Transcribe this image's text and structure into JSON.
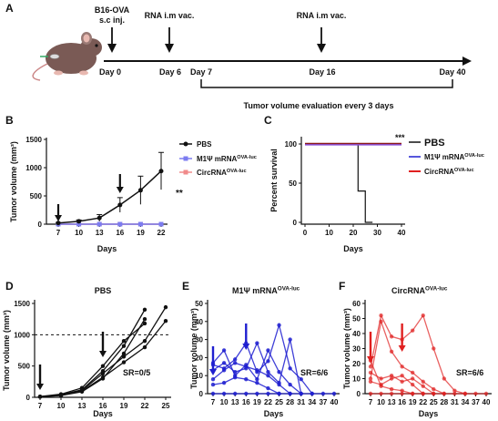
{
  "timeline": {
    "panel_label": "A",
    "arrows": [
      {
        "label_lines": [
          "B16-OVA",
          "s.c inj."
        ]
      },
      {
        "label_lines": [
          "RNA i.m vac."
        ]
      },
      {
        "label_lines": [
          "RNA i.m vac."
        ]
      }
    ],
    "days": [
      "Day 0",
      "Day 6",
      "Day 7",
      "Day 16",
      "Day 40"
    ],
    "bracket_label": "Tumor volume evaluation every 3 days"
  },
  "colors": {
    "black": "#111111",
    "blue": "#1f1fd0",
    "light_blue": "#7c7cf0",
    "red": "#e02020",
    "light_red": "#f08a8a",
    "dark_red": "#8b1a1a",
    "purple": "#8a4fd8"
  },
  "chart_data": [
    {
      "id": "B",
      "panel_label": "B",
      "type": "line",
      "xlabel": "Days",
      "ylabel": "Tumor volume (mm³)",
      "x": [
        7,
        10,
        13,
        16,
        19,
        22
      ],
      "xticks": [
        "7",
        "10",
        "13",
        "16",
        "19",
        "22"
      ],
      "yticks": [
        "0",
        "500",
        "1000",
        "1500"
      ],
      "ylim": [
        0,
        1500
      ],
      "series": [
        {
          "name": "PBS",
          "color": "#111111",
          "values": [
            20,
            50,
            110,
            340,
            600,
            940
          ],
          "errors": [
            10,
            25,
            60,
            130,
            250,
            330
          ]
        },
        {
          "name_main": "M1Ψ mRNA",
          "name_sup": "OVA-luc",
          "color": "#7c7cf0",
          "values": [
            0,
            0,
            0,
            0,
            0,
            0
          ]
        },
        {
          "name_main": "CircRNA",
          "name_sup": "OVA-luc",
          "color": "#f08a8a",
          "values": [
            0,
            0,
            0,
            0,
            0,
            0
          ]
        }
      ],
      "dose_days": [
        7,
        16
      ],
      "significance": "**"
    },
    {
      "id": "C",
      "panel_label": "C",
      "type": "line",
      "xlabel": "Days",
      "ylabel": "Percent survival",
      "xticks": [
        "0",
        "10",
        "20",
        "30",
        "40"
      ],
      "yticks": [
        "0",
        "50",
        "100"
      ],
      "xlim": [
        0,
        40
      ],
      "ylim": [
        0,
        100
      ],
      "series": [
        {
          "name": "PBS",
          "color": "#111111",
          "steps": [
            [
              0,
              100
            ],
            [
              22,
              100
            ],
            [
              22,
              40
            ],
            [
              25,
              40
            ],
            [
              25,
              0
            ],
            [
              28,
              0
            ]
          ]
        },
        {
          "name_main": "M1Ψ mRNA",
          "name_sup": "OVA-luc",
          "color": "#1f1fd0",
          "steps": [
            [
              0,
              100
            ],
            [
              40,
              100
            ]
          ]
        },
        {
          "name_main": "CircRNA",
          "name_sup": "OVA-luc",
          "color": "#8b1a1a",
          "steps": [
            [
              0,
              100
            ],
            [
              40,
              100
            ]
          ]
        }
      ],
      "significance": "***"
    },
    {
      "id": "D",
      "panel_label": "D",
      "type": "line",
      "title": "PBS",
      "xlabel": "Days",
      "ylabel": "Tumor volume (mm³)",
      "xticks": [
        "7",
        "10",
        "13",
        "16",
        "19",
        "22",
        "25"
      ],
      "yticks": [
        "0",
        "500",
        "1000",
        "1500"
      ],
      "xlim": [
        7,
        25
      ],
      "ylim": [
        0,
        1500
      ],
      "reference_y": 1000,
      "color": "#111111",
      "dose_days": [
        7,
        16
      ],
      "sr": "SR=0/5",
      "series": [
        {
          "x": [
            7,
            10,
            13,
            16,
            19,
            22
          ],
          "values": [
            10,
            40,
            120,
            420,
            820,
            1400
          ]
        },
        {
          "x": [
            7,
            10,
            13,
            16,
            19,
            22
          ],
          "values": [
            8,
            30,
            90,
            300,
            700,
            1250
          ]
        },
        {
          "x": [
            7,
            10,
            13,
            16,
            19,
            22
          ],
          "values": [
            12,
            50,
            150,
            500,
            900,
            1180
          ]
        },
        {
          "x": [
            7,
            10,
            13,
            16,
            19,
            22,
            25
          ],
          "values": [
            10,
            35,
            110,
            380,
            650,
            900,
            1440
          ]
        },
        {
          "x": [
            7,
            10,
            13,
            16,
            19,
            22,
            25
          ],
          "values": [
            9,
            30,
            100,
            320,
            560,
            800,
            1220
          ]
        }
      ]
    },
    {
      "id": "E",
      "panel_label": "E",
      "type": "line",
      "title_main": "M1Ψ mRNA",
      "title_sup": "OVA-luc",
      "xlabel": "Days",
      "ylabel": "Tumor volume (mm³)",
      "xticks": [
        "7",
        "10",
        "13",
        "16",
        "19",
        "22",
        "25",
        "28",
        "31",
        "34",
        "37",
        "40"
      ],
      "yticks": [
        "0",
        "10",
        "20",
        "30",
        "40",
        "50"
      ],
      "xlim": [
        7,
        40
      ],
      "ylim": [
        0,
        50
      ],
      "color": "#1f1fd0",
      "dose_days": [
        7,
        16
      ],
      "sr": "SR=6/6",
      "series": [
        {
          "x": [
            7,
            10,
            13,
            16,
            19,
            22,
            25,
            28,
            31
          ],
          "values": [
            17,
            24,
            10,
            16,
            8,
            24,
            12,
            5,
            0
          ]
        },
        {
          "x": [
            7,
            10,
            13,
            16,
            19,
            22,
            25,
            28,
            31,
            34
          ],
          "values": [
            16,
            14,
            19,
            28,
            12,
            18,
            38,
            14,
            8,
            0
          ]
        },
        {
          "x": [
            7,
            10,
            13,
            16,
            19,
            22,
            25,
            28,
            31
          ],
          "values": [
            13,
            17,
            12,
            14,
            28,
            12,
            6,
            30,
            0
          ]
        },
        {
          "x": [
            7,
            10,
            13,
            16,
            19,
            22,
            25,
            28
          ],
          "values": [
            8,
            13,
            17,
            15,
            13,
            10,
            5,
            0
          ]
        },
        {
          "x": [
            7,
            10,
            13,
            16,
            19,
            22,
            25
          ],
          "values": [
            5,
            6,
            9,
            8,
            6,
            3,
            0
          ]
        },
        {
          "x": [
            7,
            10,
            13,
            16,
            19,
            22,
            25,
            28,
            31,
            34,
            37,
            40
          ],
          "values": [
            0,
            0,
            0,
            0,
            0,
            0,
            0,
            0,
            0,
            0,
            0,
            0
          ]
        }
      ]
    },
    {
      "id": "F",
      "panel_label": "F",
      "type": "line",
      "title_main": "CircRNA",
      "title_sup": "OVA-luc",
      "xlabel": "Days",
      "ylabel": "Tumor volume (mm³)",
      "xticks": [
        "7",
        "10",
        "13",
        "16",
        "19",
        "22",
        "25",
        "28",
        "31",
        "34",
        "37",
        "40"
      ],
      "yticks": [
        "0",
        "10",
        "20",
        "30",
        "40",
        "50",
        "60"
      ],
      "xlim": [
        7,
        40
      ],
      "ylim": [
        0,
        60
      ],
      "color": "#e02020",
      "dose_days": [
        7,
        16
      ],
      "sr": "SR=6/6",
      "series": [
        {
          "x": [
            7,
            10,
            13,
            16,
            19,
            22,
            25,
            28,
            31,
            34
          ],
          "values": [
            18,
            52,
            38,
            36,
            42,
            52,
            30,
            10,
            2,
            0
          ]
        },
        {
          "x": [
            7,
            10,
            13,
            16,
            19,
            22,
            25,
            28
          ],
          "values": [
            10,
            48,
            28,
            18,
            14,
            8,
            3,
            0
          ]
        },
        {
          "x": [
            7,
            10,
            13,
            16,
            19,
            22,
            25
          ],
          "values": [
            14,
            10,
            12,
            8,
            10,
            5,
            0
          ]
        },
        {
          "x": [
            7,
            10,
            13,
            16,
            19,
            22
          ],
          "values": [
            8,
            6,
            10,
            12,
            6,
            0
          ]
        },
        {
          "x": [
            7,
            10,
            13,
            16,
            19
          ],
          "values": [
            22,
            5,
            3,
            2,
            0
          ]
        },
        {
          "x": [
            7,
            10,
            13,
            16,
            19,
            22,
            25,
            28,
            31,
            34,
            37,
            40
          ],
          "values": [
            0,
            0,
            0,
            0,
            0,
            0,
            0,
            0,
            0,
            0,
            0,
            0
          ]
        }
      ]
    }
  ]
}
